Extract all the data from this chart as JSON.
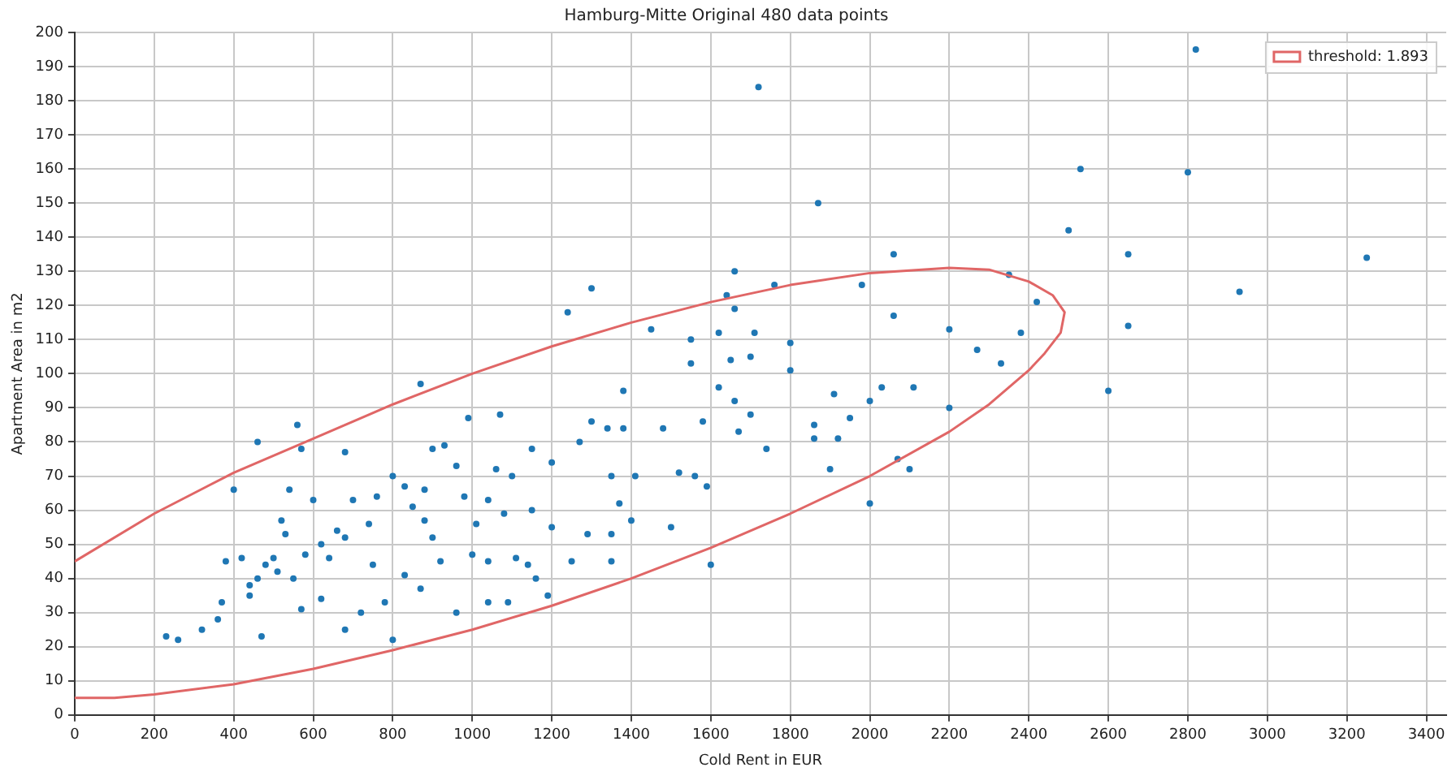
{
  "chart_data": {
    "type": "scatter",
    "title": "Hamburg-Mitte Original 480 data points",
    "xlabel": "Cold Rent in EUR",
    "ylabel": "Apartment Area in m2",
    "xlim": [
      0,
      3450
    ],
    "xticks": [
      0,
      200,
      400,
      600,
      800,
      1000,
      1200,
      1400,
      1600,
      1800,
      2000,
      2200,
      2400,
      2600,
      2800,
      3000,
      3200,
      3400
    ],
    "ylim": [
      0,
      200
    ],
    "yticks": [
      0,
      10,
      20,
      30,
      40,
      50,
      60,
      70,
      80,
      90,
      100,
      110,
      120,
      130,
      140,
      150,
      160,
      170,
      180,
      190,
      200
    ],
    "grid": true,
    "legend": "top right",
    "marker": "circle",
    "series": [
      {
        "color": "#1f77b4",
        "x": [
          2820,
          1720,
          2530,
          2800,
          1870,
          2500,
          2650,
          2060,
          3250,
          1660,
          2350,
          1300,
          1760,
          1980,
          2930,
          1640,
          2420,
          1660,
          1240,
          2060,
          2650,
          1620,
          1710,
          2380,
          2200,
          1450,
          1550,
          1800,
          2270,
          1550,
          1650,
          2330,
          1700,
          1800,
          2600,
          2030,
          2110,
          1620,
          1380,
          1910,
          1660,
          2000,
          2200,
          1580,
          1300,
          1950,
          1700,
          1070,
          990,
          870,
          1860,
          1740,
          1670,
          1860,
          1920,
          1340,
          1380,
          1480,
          2070,
          1900,
          2100,
          2000,
          1590,
          1560,
          1520,
          1500,
          1600,
          1410,
          1350,
          1370,
          1270,
          1200,
          1150,
          1100,
          1040,
          1200,
          1250,
          1290,
          1350,
          1400,
          1350,
          1160,
          1110,
          1080,
          1040,
          980,
          960,
          930,
          900,
          880,
          850,
          830,
          800,
          760,
          740,
          700,
          680,
          680,
          660,
          640,
          600,
          580,
          560,
          570,
          540,
          520,
          500,
          480,
          460,
          440,
          460,
          420,
          400,
          380,
          370,
          360,
          320,
          260,
          230,
          470,
          440,
          510,
          550,
          570,
          620,
          680,
          720,
          780,
          800,
          830,
          870,
          920,
          960,
          1000,
          1040,
          1090,
          1140,
          1190,
          1010,
          1150,
          900,
          750,
          620,
          530,
          880,
          1060
        ],
        "values": [
          195,
          184,
          160,
          159,
          150,
          142,
          135,
          135,
          134,
          130,
          129,
          125,
          126,
          126,
          124,
          123,
          121,
          119,
          118,
          117,
          114,
          112,
          112,
          112,
          113,
          113,
          110,
          109,
          107,
          103,
          104,
          103,
          105,
          101,
          95,
          96,
          96,
          96,
          95,
          94,
          92,
          92,
          90,
          86,
          86,
          87,
          88,
          88,
          87,
          97,
          85,
          78,
          83,
          81,
          81,
          84,
          84,
          84,
          75,
          72,
          72,
          62,
          67,
          70,
          71,
          55,
          44,
          70,
          70,
          62,
          80,
          74,
          78,
          70,
          63,
          55,
          45,
          53,
          53,
          57,
          45,
          40,
          46,
          59,
          33,
          64,
          73,
          79,
          78,
          66,
          61,
          67,
          70,
          64,
          56,
          63,
          77,
          52,
          54,
          46,
          63,
          47,
          85,
          78,
          66,
          57,
          46,
          44,
          40,
          38,
          80,
          46,
          66,
          45,
          33,
          28,
          25,
          22,
          23,
          23,
          35,
          42,
          40,
          31,
          34,
          25,
          30,
          33,
          22,
          41,
          37,
          45,
          30,
          47,
          45,
          33,
          44,
          35,
          56,
          60,
          52,
          44,
          50,
          53,
          57,
          72
        ]
      },
      {
        "type": "line",
        "name": "threshold: 1.893",
        "color": "#e06666",
        "marker": "none",
        "line_style": "solid",
        "x": [
          0,
          200,
          400,
          600,
          800,
          1000,
          1200,
          1400,
          1600,
          1800,
          2000,
          2200,
          2300,
          2400,
          2460,
          2490,
          2480,
          2440,
          2400,
          2300,
          2200,
          2000,
          1800,
          1600,
          1400,
          1200,
          1000,
          800,
          600,
          400,
          200,
          100,
          0
        ],
        "values": [
          45,
          59,
          71,
          81,
          91,
          100,
          108,
          115,
          121,
          126,
          129.5,
          131,
          130.5,
          127,
          123,
          118,
          112,
          106,
          101,
          91,
          83,
          70,
          59,
          49,
          40,
          32,
          25,
          19,
          13.5,
          9,
          6,
          5,
          5
        ]
      }
    ]
  }
}
